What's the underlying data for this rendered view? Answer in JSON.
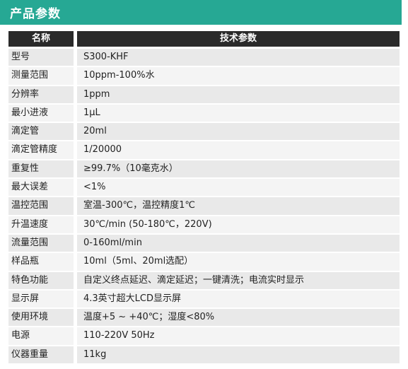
{
  "title": "产品参数",
  "header": {
    "name": "名称",
    "value": "技术参数"
  },
  "rows": [
    {
      "name": "型号",
      "value": "S300-KHF"
    },
    {
      "name": "测量范围",
      "value": "10ppm-100%水"
    },
    {
      "name": "分辨率",
      "value": "1ppm"
    },
    {
      "name": "最小进液",
      "value": "1µL"
    },
    {
      "name": "滴定管",
      "value": "20ml"
    },
    {
      "name": "滴定管精度",
      "value": "1/20000"
    },
    {
      "name": "重复性",
      "value": "≥99.7%（10毫克水）"
    },
    {
      "name": "最大误差",
      "value": "<1%"
    },
    {
      "name": "温控范围",
      "value": "室温-300℃，温控精度1℃"
    },
    {
      "name": "升温速度",
      "value": "30℃/min (50-180℃，220V)"
    },
    {
      "name": "流量范围",
      "value": "0-160ml/min"
    },
    {
      "name": "样品瓶",
      "value": "10ml（5ml、20ml选配）"
    },
    {
      "name": "特色功能",
      "value": "自定义终点延迟、滴定延迟；一键清洗；电流实时显示"
    },
    {
      "name": "显示屏",
      "value": "4.3英寸超大LCD显示屏"
    },
    {
      "name": "使用环境",
      "value": "温度+5 ~ +40℃；湿度<80%"
    },
    {
      "name": "电源",
      "value": "110-220V 50Hz"
    },
    {
      "name": "仪器重量",
      "value": "11kg"
    }
  ],
  "colors": {
    "title_bar": "#26a894",
    "header_bg": "#2a2a2a",
    "cell_bg": "#e9e9e9"
  }
}
